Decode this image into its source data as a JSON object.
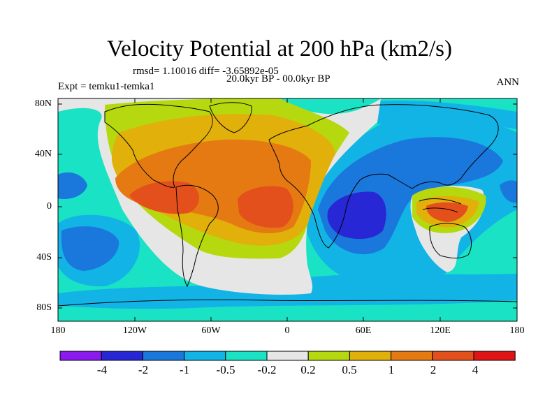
{
  "title": "Velocity Potential at 200 hPa (km2/s)",
  "rmsd_line": "rmsd= 1.10016 diff= -3.65892e-05",
  "period": "20.0kyr BP - 00.0kyr BP",
  "experiment": "Expt = temku1-temka1",
  "season": "ANN",
  "lat_ticks": [
    "80N",
    "40N",
    "0",
    "40S",
    "80S"
  ],
  "lon_ticks": [
    "180",
    "120W",
    "60W",
    "0",
    "60E",
    "120E",
    "180"
  ],
  "colorbar": {
    "levels": [
      "-4",
      "-2",
      "-1",
      "-0.5",
      "-0.2",
      "0.2",
      "0.5",
      "1",
      "2",
      "4"
    ],
    "colors": [
      "#8a1aee",
      "#2727d6",
      "#1a78dc",
      "#12b4e6",
      "#19e3c4",
      "#e6e6e6",
      "#b6d80f",
      "#e2b00a",
      "#e67a12",
      "#e4501b",
      "#e01414"
    ]
  }
}
